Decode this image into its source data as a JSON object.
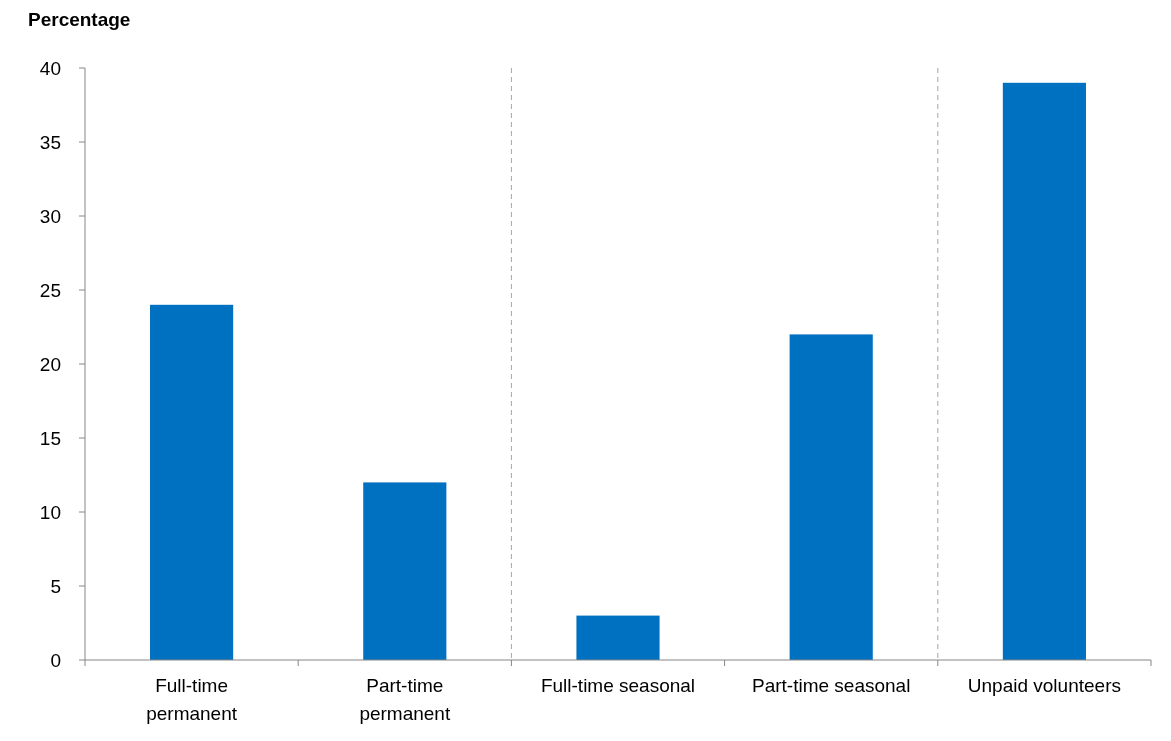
{
  "chart_data": {
    "type": "bar",
    "ylabel": "Percentage",
    "categories": [
      "Full-time\npermanent",
      "Part-time\npermanent",
      "Full-time seasonal",
      "Part-time seasonal",
      "Unpaid volunteers"
    ],
    "values": [
      24,
      12,
      3,
      22,
      39
    ],
    "color": "#0070c0",
    "ylim": [
      0,
      40
    ],
    "yticks": [
      0,
      5,
      10,
      15,
      20,
      25,
      30,
      35,
      40
    ],
    "grid": false
  }
}
